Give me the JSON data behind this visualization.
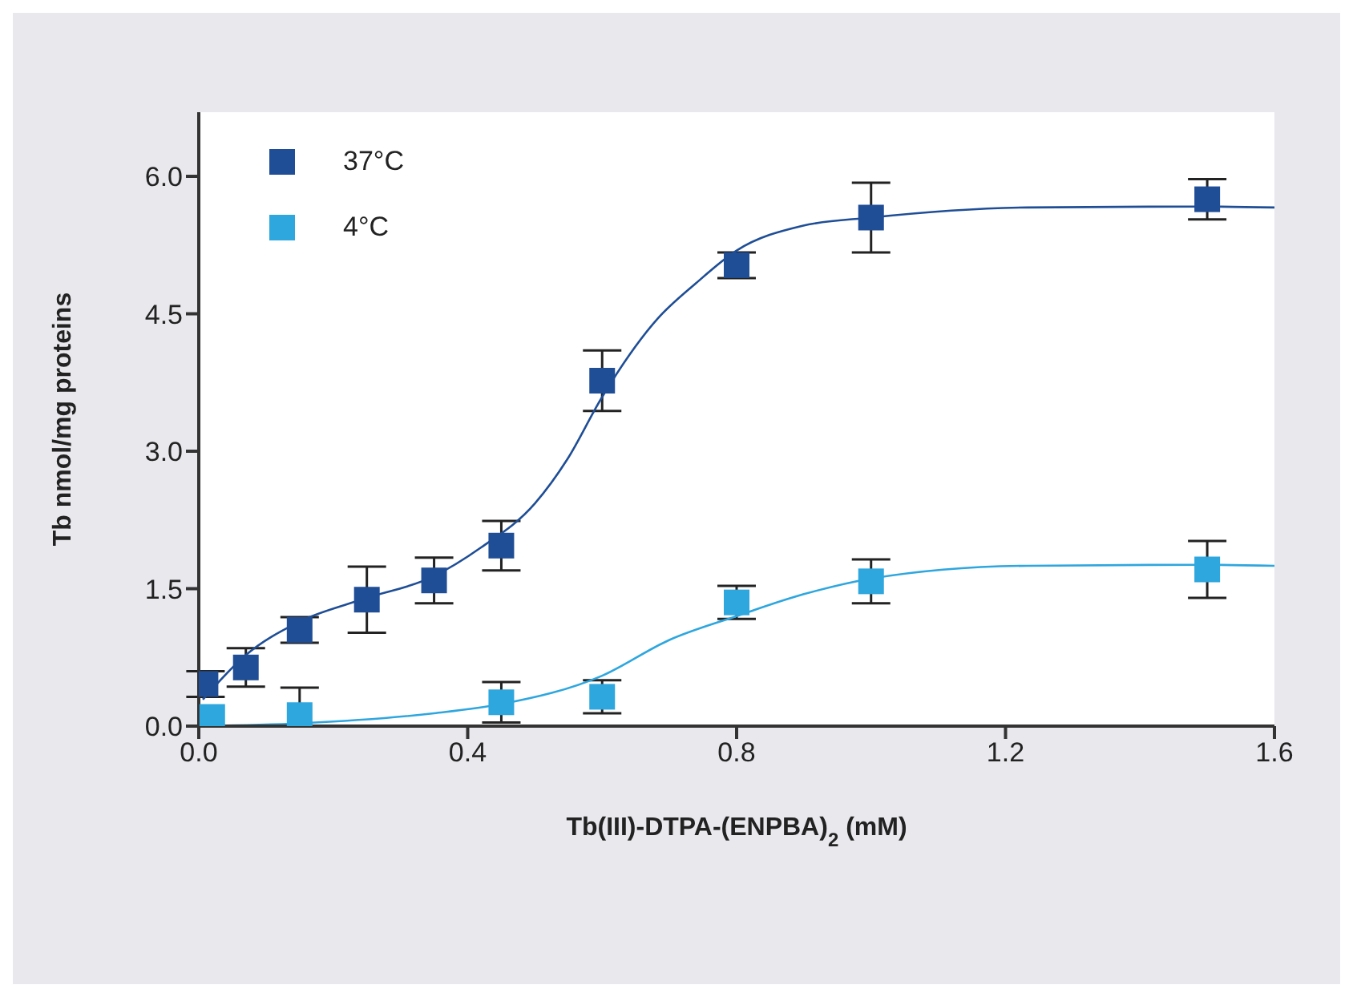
{
  "chart_data": {
    "type": "scatter",
    "xlabel": "Tb(III)-DTPA-(ENPBA)$_{2}$ (mM)",
    "ylabel": "Tb nmol/mg proteins",
    "xlim": [
      0,
      1.6
    ],
    "xticks": [
      {
        "value": 0,
        "label": "0.0"
      },
      0.4,
      0.8,
      1.2,
      1.6
    ],
    "ylim": [
      0,
      6.7
    ],
    "yticks": [
      {
        "value": 0,
        "label": "0.0"
      },
      1.5,
      {
        "value": 3,
        "label": "3.0"
      },
      4.5,
      {
        "value": 6,
        "label": "6.0"
      }
    ],
    "grid": false,
    "legend": "top left",
    "series": [
      {
        "name": "37°C",
        "color": "#1f4e96",
        "x": [
          0.01,
          0.07,
          0.15,
          0.25,
          0.35,
          0.45,
          0.6,
          0.8,
          1.0,
          1.5
        ],
        "marker": "square",
        "values": [
          0.46,
          0.64,
          1.05,
          1.38,
          1.59,
          1.97,
          3.77,
          5.03,
          5.55,
          5.75
        ],
        "errors": [
          0.14,
          0.21,
          0.14,
          0.36,
          0.25,
          0.27,
          0.33,
          0.14,
          0.38,
          0.22
        ]
      },
      {
        "name": "4°C",
        "color": "#2ea6de",
        "x": [
          0.02,
          0.15,
          0.45,
          0.6,
          0.8,
          1.0,
          1.5
        ],
        "marker": "square",
        "values": [
          0.1,
          0.12,
          0.26,
          0.32,
          1.35,
          1.58,
          1.71
        ],
        "errors": [
          null,
          [
            0,
            0.42
          ],
          0.22,
          0.18,
          0.18,
          0.24,
          0.31
        ]
      },
      {
        "type": "line",
        "marker": "none",
        "color": "#1f4e96",
        "x": [
          0.006,
          0.069,
          0.147,
          0.246,
          0.348,
          0.42,
          0.5,
          0.548,
          0.599,
          0.683,
          0.739,
          0.8,
          0.898,
          1.0,
          1.232,
          1.5,
          1.6
        ],
        "values": [
          0.29,
          0.77,
          1.13,
          1.39,
          1.63,
          1.95,
          2.43,
          2.91,
          3.58,
          4.45,
          4.83,
          5.19,
          5.46,
          5.55,
          5.66,
          5.67,
          5.66
        ]
      },
      {
        "type": "line",
        "marker": "none",
        "color": "#2ea6de",
        "x": [
          0.0,
          0.15,
          0.35,
          0.45,
          0.6,
          0.7,
          0.8,
          0.9,
          1.0,
          1.232,
          1.5,
          1.6
        ],
        "values": [
          0.0,
          0.03,
          0.14,
          0.24,
          0.55,
          0.94,
          1.2,
          1.44,
          1.61,
          1.75,
          1.76,
          1.75
        ]
      }
    ]
  }
}
